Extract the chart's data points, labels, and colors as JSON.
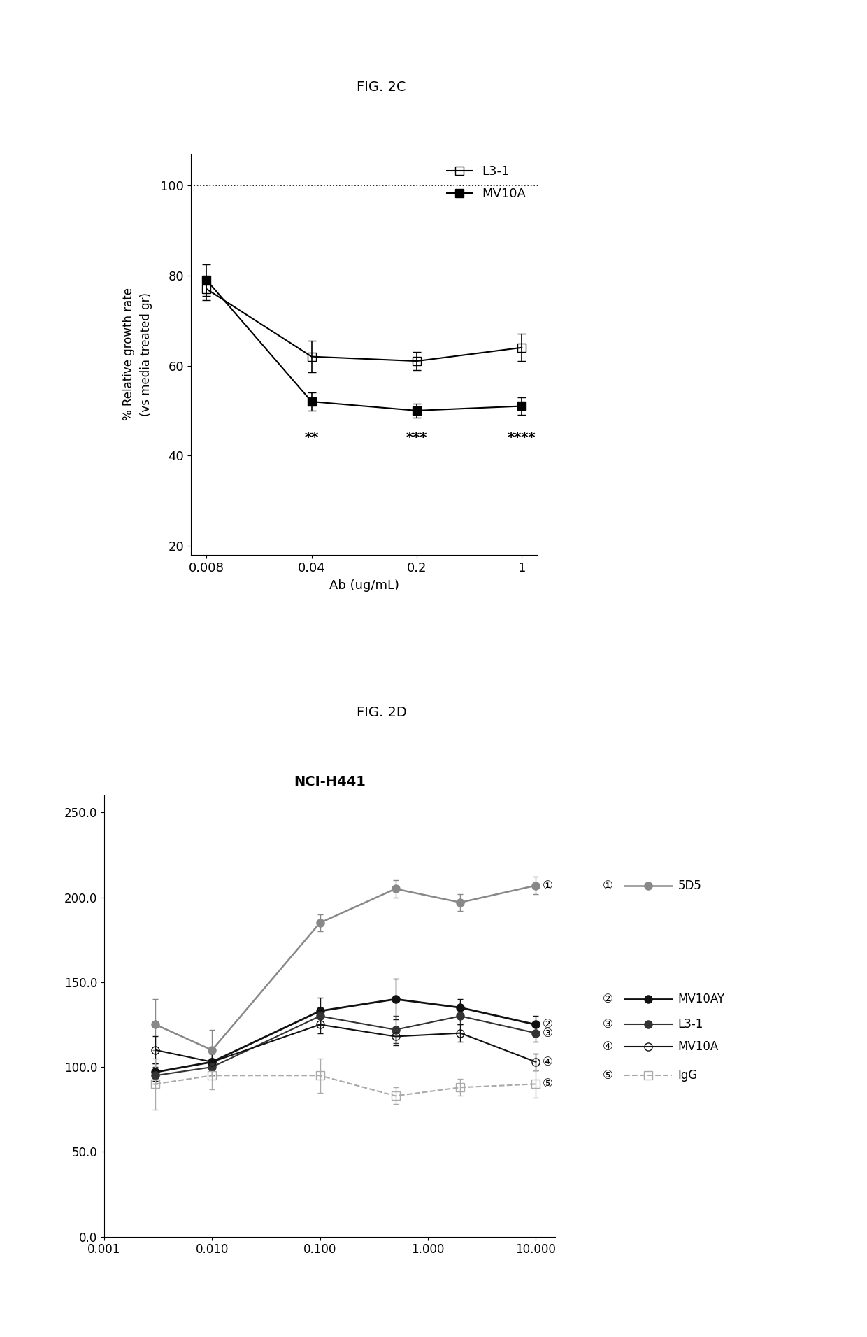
{
  "fig2c": {
    "title": "FIG. 2C",
    "x_positions": [
      0,
      1,
      2,
      3
    ],
    "x_labels": [
      "0.008",
      "0.04",
      "0.2",
      "1"
    ],
    "xlabel": "Ab (ug/mL)",
    "ylabel": "% Relative growth rate\n(vs media treated gr)",
    "ylim": [
      18,
      107
    ],
    "yticks": [
      20,
      40,
      60,
      80,
      100
    ],
    "series": [
      {
        "label": "L3-1",
        "y": [
          77,
          62,
          61,
          64
        ],
        "yerr": [
          2.5,
          3.5,
          2.0,
          3.0
        ],
        "color": "#000000",
        "marker": "s",
        "fillstyle": "none",
        "linestyle": "-",
        "linewidth": 1.5
      },
      {
        "label": "MV10A",
        "y": [
          79,
          52,
          50,
          51
        ],
        "yerr": [
          3.5,
          2.0,
          1.5,
          2.0
        ],
        "color": "#000000",
        "marker": "s",
        "fillstyle": "full",
        "linestyle": "-",
        "linewidth": 1.5
      }
    ],
    "annotations": [
      {
        "x_idx": 1,
        "y": 44,
        "text": "**"
      },
      {
        "x_idx": 2,
        "y": 44,
        "text": "***"
      },
      {
        "x_idx": 3,
        "y": 44,
        "text": "****"
      }
    ]
  },
  "fig2d": {
    "title": "FIG. 2D",
    "subtitle": "NCI-H441",
    "ylim": [
      0,
      260
    ],
    "yticks": [
      0,
      50,
      100,
      150,
      200,
      250
    ],
    "ytick_labels": [
      "0.0",
      "50.0",
      "100.0",
      "150.0",
      "200.0",
      "250.0"
    ],
    "xlim": [
      0.0015,
      15
    ],
    "x_values": [
      0.003,
      0.01,
      0.1,
      0.5,
      2.0,
      10.0
    ],
    "x_ticks": [
      0.001,
      0.01,
      0.1,
      1.0,
      10.0
    ],
    "x_tick_labels": [
      "0.001",
      "0.010",
      "0.100",
      "1.000",
      "10.000"
    ],
    "series": [
      {
        "label": "5D5",
        "num": "①",
        "y": [
          125,
          110,
          185,
          205,
          197,
          207
        ],
        "yerr": [
          15,
          12,
          5,
          5,
          5,
          5
        ],
        "color": "#888888",
        "marker": "o",
        "fillstyle": "full",
        "linestyle": "-",
        "linewidth": 1.8
      },
      {
        "label": "MV10AY",
        "num": "②",
        "y": [
          97,
          103,
          133,
          140,
          135,
          125
        ],
        "yerr": [
          5,
          5,
          8,
          12,
          5,
          5
        ],
        "color": "#111111",
        "marker": "o",
        "fillstyle": "full",
        "linestyle": "-",
        "linewidth": 2.0
      },
      {
        "label": "L3-1",
        "num": "③",
        "y": [
          95,
          100,
          130,
          122,
          130,
          120
        ],
        "yerr": [
          5,
          5,
          5,
          8,
          5,
          5
        ],
        "color": "#333333",
        "marker": "o",
        "fillstyle": "full",
        "linestyle": "-",
        "linewidth": 1.5
      },
      {
        "label": "MV10A",
        "num": "④",
        "y": [
          110,
          103,
          125,
          118,
          120,
          103
        ],
        "yerr": [
          8,
          5,
          5,
          5,
          5,
          5
        ],
        "color": "#111111",
        "marker": "o",
        "fillstyle": "none",
        "linestyle": "-",
        "linewidth": 1.5
      },
      {
        "label": "IgG",
        "num": "⑤",
        "y": [
          90,
          95,
          95,
          83,
          88,
          90
        ],
        "yerr": [
          15,
          8,
          10,
          5,
          5,
          8
        ],
        "color": "#aaaaaa",
        "marker": "s",
        "fillstyle": "none",
        "linestyle": "--",
        "linewidth": 1.5
      }
    ],
    "end_labels": [
      {
        "num": "①",
        "y": 207
      },
      {
        "num": "②",
        "y": 125
      },
      {
        "num": "③",
        "y": 120
      },
      {
        "num": "④",
        "y": 103
      },
      {
        "num": "⑤",
        "y": 90
      }
    ],
    "legend_group1": [
      {
        "num": "①",
        "label": "5D5",
        "series_idx": 0
      }
    ],
    "legend_group2": [
      {
        "num": "②",
        "label": "MV10AY",
        "series_idx": 1
      },
      {
        "num": "③",
        "label": "L3-1",
        "series_idx": 2
      },
      {
        "num": "④",
        "label": "MV10A",
        "series_idx": 3
      },
      {
        "num": "⑤",
        "label": "IgG",
        "series_idx": 4
      }
    ]
  }
}
